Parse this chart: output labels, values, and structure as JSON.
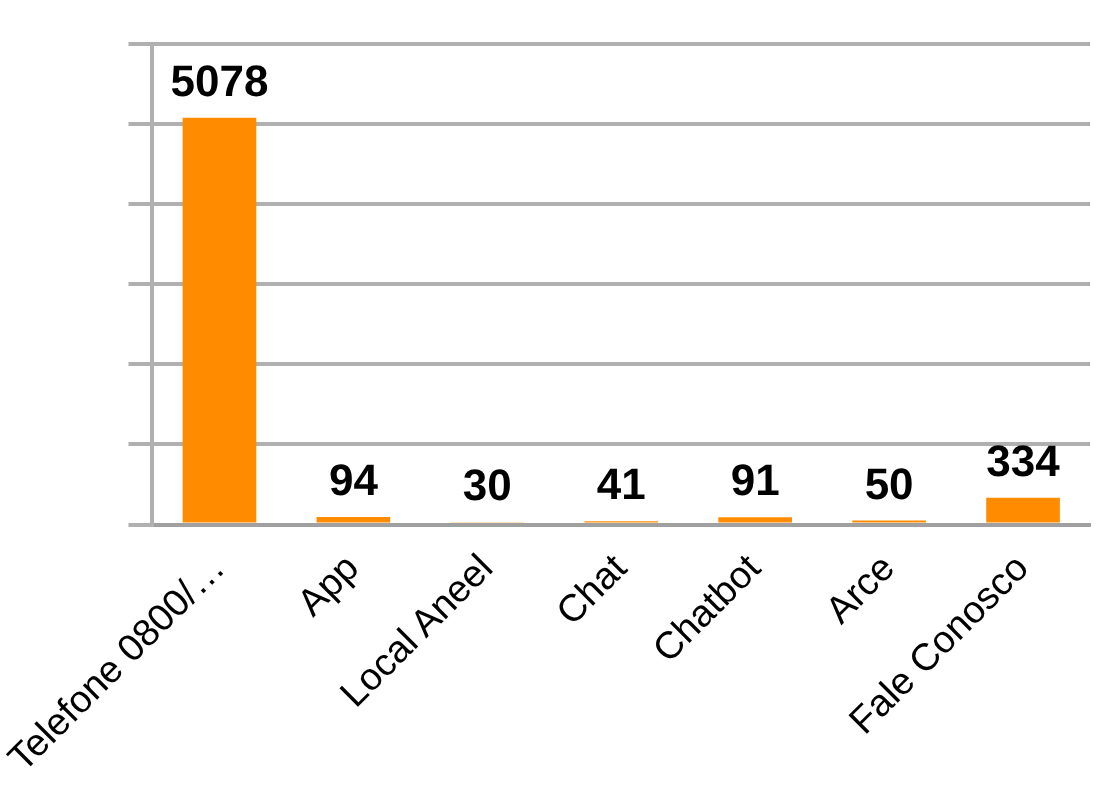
{
  "chart_data": {
    "type": "bar",
    "categories": [
      "Telefone 0800/…",
      "App",
      "Local Aneel",
      "Chat",
      "Chatbot",
      "Arce",
      "Fale Conosco"
    ],
    "values": [
      5078,
      94,
      30,
      41,
      91,
      50,
      334
    ],
    "color": "#ff8c00",
    "ylim": [
      0,
      6000
    ],
    "yticks": [
      {
        "value": 0,
        "label": null
      },
      {
        "value": 1000,
        "label": null
      },
      {
        "value": 2000,
        "label": null
      },
      {
        "value": 3000,
        "label": null
      },
      {
        "value": 4000,
        "label": null
      },
      {
        "value": 5000,
        "label": null
      },
      {
        "value": 6000,
        "label": null
      }
    ],
    "grid": "y",
    "data_labels": true
  }
}
